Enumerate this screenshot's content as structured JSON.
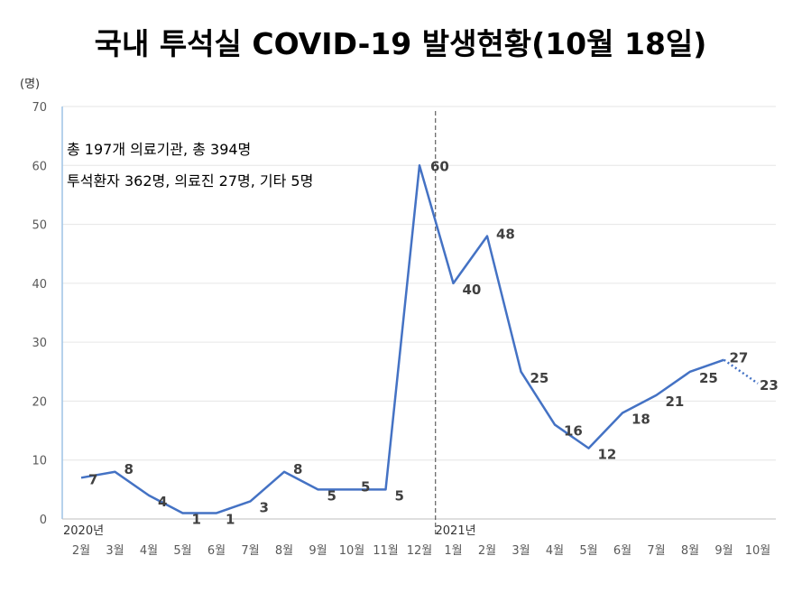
{
  "chart_data": {
    "type": "line",
    "title": "국내 투석실 COVID-19 발생현황(10월 18일)",
    "ylabel": "(명)",
    "ylim": [
      0,
      70
    ],
    "yticks": [
      0,
      10,
      20,
      30,
      40,
      50,
      60,
      70
    ],
    "grid": true,
    "categories": [
      "2월",
      "3월",
      "4월",
      "5월",
      "6월",
      "7월",
      "8월",
      "9월",
      "10월",
      "11월",
      "12월",
      "1월",
      "2월",
      "3월",
      "4월",
      "5월",
      "6월",
      "7월",
      "8월",
      "9월",
      "10월"
    ],
    "year_labels": [
      {
        "label": "2020년",
        "category_index": 0
      },
      {
        "label": "2021년",
        "category_index": 11
      }
    ],
    "values": [
      7,
      8,
      4,
      1,
      1,
      3,
      8,
      5,
      5,
      5,
      60,
      40,
      48,
      25,
      16,
      12,
      18,
      21,
      25,
      27,
      23
    ],
    "value_labels": [
      "7",
      "8",
      "4",
      "1",
      "1",
      "3",
      "8",
      "5",
      "5",
      "5",
      "60",
      "40",
      "48",
      "25",
      "16",
      "12",
      "18",
      "21",
      "25",
      "27",
      "23"
    ],
    "projected_from_index": 19,
    "annotations": [
      "총 197개 의료기관, 총 394명",
      "투석환자 362명, 의료진 27명, 기타 5명"
    ],
    "colors": {
      "series": "#4472c4",
      "divider": "#404040"
    }
  }
}
